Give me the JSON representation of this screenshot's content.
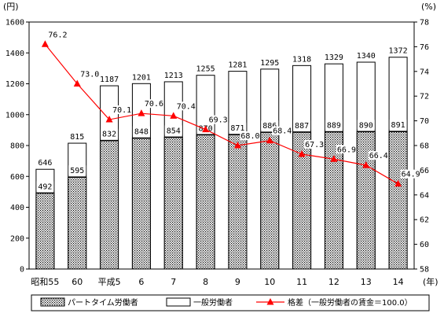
{
  "chart_data": {
    "type": "bar",
    "categories": [
      "昭和55",
      "60",
      "平成5",
      "6",
      "7",
      "8",
      "9",
      "10",
      "11",
      "12",
      "13",
      "14"
    ],
    "y_left_unit": "(円)",
    "y_right_unit": "(%)",
    "x_unit": "(年)",
    "ylim_left": [
      0,
      1600
    ],
    "yticks_left": [
      "0",
      "200",
      "400",
      "600",
      "800",
      "1000",
      "1200",
      "1400",
      "1600"
    ],
    "ylim_right": [
      58,
      78
    ],
    "yticks_right": [
      "58",
      "60",
      "62",
      "64",
      "66",
      "68",
      "70",
      "72",
      "74",
      "76",
      "78"
    ],
    "series": [
      {
        "name": "パートタイム労働者",
        "kind": "bar",
        "values": [
          492,
          595,
          832,
          848,
          854,
          870,
          871,
          886,
          887,
          889,
          890,
          891
        ],
        "labels": [
          "492",
          "595",
          "832",
          "848",
          "854",
          "870",
          "871",
          "886",
          "887",
          "889",
          "890",
          "891"
        ],
        "fill": "dotted"
      },
      {
        "name": "一般労働者",
        "kind": "bar",
        "values": [
          646,
          815,
          1187,
          1201,
          1213,
          1255,
          1281,
          1295,
          1318,
          1329,
          1340,
          1372
        ],
        "labels": [
          "646",
          "815",
          "1187",
          "1201",
          "1213",
          "1255",
          "1281",
          "1295",
          "1318",
          "1329",
          "1340",
          "1372"
        ],
        "fill": "white"
      },
      {
        "name": "格差（一般労働者の賃金＝100.0）",
        "kind": "line",
        "axis": "right",
        "values": [
          76.2,
          73.0,
          70.1,
          70.6,
          70.4,
          69.3,
          68.0,
          68.4,
          67.3,
          66.9,
          66.4,
          64.9
        ],
        "labels": [
          "76.2",
          "73.0",
          "70.1",
          "70.6",
          "70.4",
          "69.3",
          "68.0",
          "68.4",
          "67.3",
          "66.9",
          "66.4",
          "64.9"
        ],
        "color": "#ff0000"
      }
    ],
    "grid": false,
    "legend_position": "bottom"
  }
}
